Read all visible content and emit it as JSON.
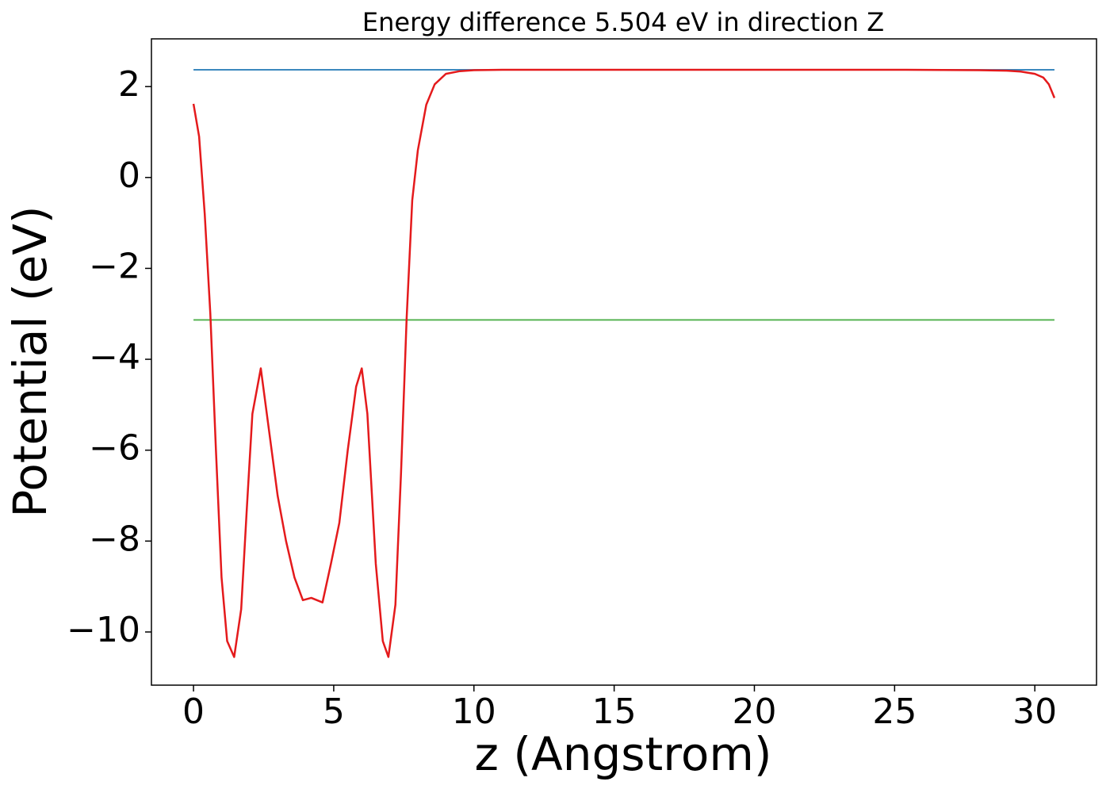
{
  "chart_data": {
    "type": "line",
    "title": "Energy difference 5.504 eV in direction Z",
    "xlabel": "z (Angstrom)",
    "ylabel": "Potential (eV)",
    "xlim": [
      -1.5,
      32.2
    ],
    "ylim": [
      -11.17,
      3.05
    ],
    "xticks": [
      0,
      5,
      10,
      15,
      20,
      25,
      30
    ],
    "yticks": [
      {
        "value": -10,
        "label": "−10"
      },
      {
        "value": -8,
        "label": "−8"
      },
      {
        "value": -6,
        "label": "−6"
      },
      {
        "value": -4,
        "label": "−4"
      },
      {
        "value": -2,
        "label": "−2"
      },
      0,
      2
    ],
    "grid": false,
    "series": [
      {
        "color": "#1f77b4",
        "x": [
          0,
          30.7
        ],
        "values": [
          2.37,
          2.37
        ]
      },
      {
        "color": "#4daf4a",
        "x": [
          0,
          30.7
        ],
        "values": [
          -3.134,
          -3.134
        ]
      },
      {
        "color": "#e41a1c",
        "x": [
          0,
          0.2,
          0.4,
          0.6,
          0.8,
          1.0,
          1.2,
          1.45,
          1.7,
          1.9,
          2.1,
          2.4,
          2.7,
          3.0,
          3.3,
          3.6,
          3.9,
          4.2,
          4.6,
          4.9,
          5.2,
          5.5,
          5.8,
          6.0,
          6.2,
          6.5,
          6.75,
          6.95,
          7.2,
          7.4,
          7.6,
          7.8,
          8.0,
          8.3,
          8.6,
          9.0,
          9.5,
          10,
          11,
          15,
          20,
          25,
          28,
          29,
          29.5,
          30,
          30.3,
          30.5,
          30.7
        ],
        "values": [
          1.62,
          0.9,
          -0.8,
          -3.0,
          -6.0,
          -8.8,
          -10.2,
          -10.55,
          -9.5,
          -7.3,
          -5.2,
          -4.2,
          -5.6,
          -7.0,
          -8.0,
          -8.8,
          -9.3,
          -9.25,
          -9.35,
          -8.5,
          -7.6,
          -6.0,
          -4.6,
          -4.2,
          -5.2,
          -8.5,
          -10.2,
          -10.55,
          -9.4,
          -6.5,
          -3.1,
          -0.5,
          0.6,
          1.6,
          2.05,
          2.28,
          2.34,
          2.36,
          2.37,
          2.37,
          2.37,
          2.37,
          2.36,
          2.35,
          2.33,
          2.28,
          2.2,
          2.05,
          1.75
        ]
      }
    ]
  }
}
